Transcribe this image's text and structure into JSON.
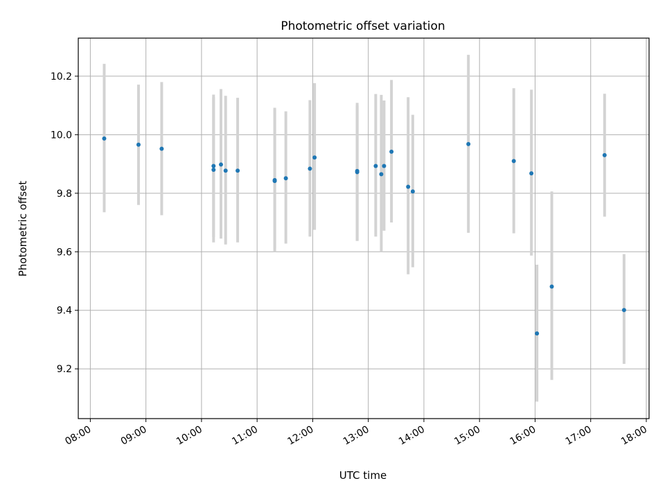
{
  "chart_data": {
    "type": "scatter",
    "title": "Photometric offset variation",
    "xlabel": "UTC time",
    "ylabel": "Photometric offset",
    "x_tick_labels": [
      "08:00",
      "09:00",
      "10:00",
      "11:00",
      "12:00",
      "13:00",
      "14:00",
      "15:00",
      "16:00",
      "17:00",
      "18:00"
    ],
    "y_tick_labels": [
      "9.2",
      "9.4",
      "9.6",
      "9.8",
      "10.0",
      "10.2"
    ],
    "y_ticks": [
      9.2,
      9.4,
      9.6,
      9.8,
      10.0,
      10.2
    ],
    "xlim": [
      "07:47",
      "18:03"
    ],
    "ylim": [
      9.03,
      10.33
    ],
    "grid": true,
    "marker_color": "#1f77b4",
    "errorbar_color": "#d3d3d3",
    "points": [
      {
        "x": "08:15",
        "y": 9.987,
        "ylo": 9.735,
        "yhi": 10.242
      },
      {
        "x": "08:52",
        "y": 9.966,
        "ylo": 9.76,
        "yhi": 10.171
      },
      {
        "x": "09:17",
        "y": 9.952,
        "ylo": 9.725,
        "yhi": 10.18
      },
      {
        "x": "10:13",
        "y": 9.893,
        "ylo": 9.65,
        "yhi": 10.137
      },
      {
        "x": "10:13",
        "y": 9.88,
        "ylo": 9.632,
        "yhi": 10.128
      },
      {
        "x": "10:21",
        "y": 9.898,
        "ylo": 9.645,
        "yhi": 10.156
      },
      {
        "x": "10:26",
        "y": 9.877,
        "ylo": 9.625,
        "yhi": 10.133
      },
      {
        "x": "10:39",
        "y": 9.877,
        "ylo": 9.632,
        "yhi": 10.126
      },
      {
        "x": "11:19",
        "y": 9.845,
        "ylo": 9.6,
        "yhi": 10.092
      },
      {
        "x": "11:19",
        "y": 9.842,
        "ylo": 9.61,
        "yhi": 10.085
      },
      {
        "x": "11:31",
        "y": 9.851,
        "ylo": 9.628,
        "yhi": 10.08
      },
      {
        "x": "11:57",
        "y": 9.884,
        "ylo": 9.652,
        "yhi": 10.118
      },
      {
        "x": "12:02",
        "y": 9.922,
        "ylo": 9.675,
        "yhi": 10.176
      },
      {
        "x": "12:48",
        "y": 9.876,
        "ylo": 9.637,
        "yhi": 10.109
      },
      {
        "x": "12:48",
        "y": 9.872,
        "ylo": 9.637,
        "yhi": 10.1
      },
      {
        "x": "13:08",
        "y": 9.893,
        "ylo": 9.652,
        "yhi": 10.139
      },
      {
        "x": "13:14",
        "y": 9.865,
        "ylo": 9.6,
        "yhi": 10.136
      },
      {
        "x": "13:17",
        "y": 9.893,
        "ylo": 9.672,
        "yhi": 10.117
      },
      {
        "x": "13:25",
        "y": 9.942,
        "ylo": 9.7,
        "yhi": 10.187
      },
      {
        "x": "13:43",
        "y": 9.822,
        "ylo": 9.523,
        "yhi": 10.128
      },
      {
        "x": "13:48",
        "y": 9.806,
        "ylo": 9.547,
        "yhi": 10.068
      },
      {
        "x": "14:48",
        "y": 9.968,
        "ylo": 9.665,
        "yhi": 10.273
      },
      {
        "x": "15:37",
        "y": 9.91,
        "ylo": 9.663,
        "yhi": 10.159
      },
      {
        "x": "15:56",
        "y": 9.868,
        "ylo": 9.587,
        "yhi": 10.154
      },
      {
        "x": "16:02",
        "y": 9.321,
        "ylo": 9.088,
        "yhi": 9.556
      },
      {
        "x": "16:18",
        "y": 9.481,
        "ylo": 9.162,
        "yhi": 9.806
      },
      {
        "x": "17:15",
        "y": 9.93,
        "ylo": 9.72,
        "yhi": 10.14
      },
      {
        "x": "17:36",
        "y": 9.401,
        "ylo": 9.217,
        "yhi": 9.592
      }
    ]
  }
}
